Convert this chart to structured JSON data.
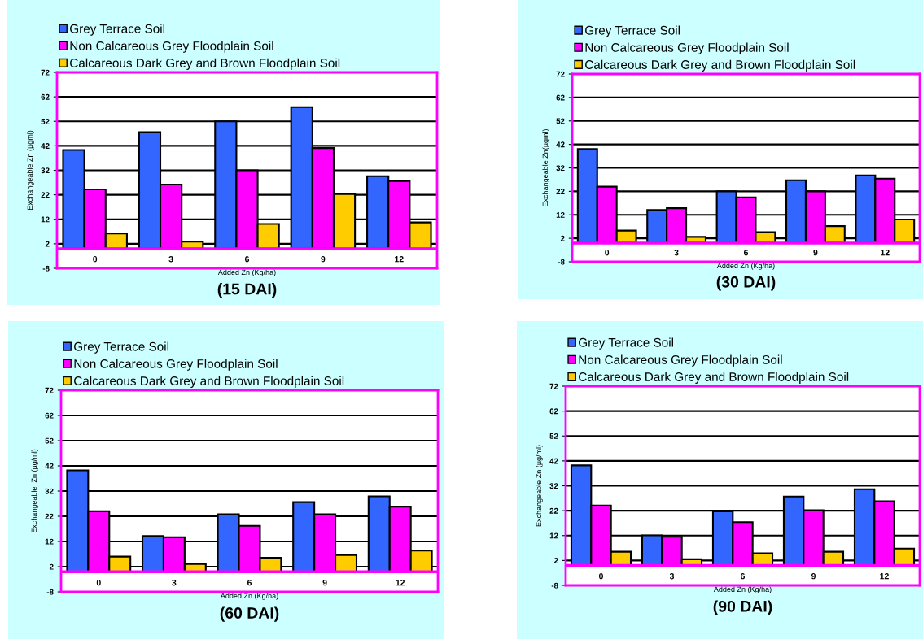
{
  "chart_data": [
    {
      "type": "bar",
      "title": "(15 DAI)",
      "xlabel": "Added Zn (Kg/ha)",
      "ylabel": "Exchangeable Zn (µgml)",
      "categories": [
        "0",
        "3",
        "6",
        "9",
        "12"
      ],
      "series": [
        {
          "name": "Grey Terrace Soil",
          "color": "#3366ff",
          "values": [
            40.3,
            47.6,
            52,
            57.8,
            29.6
          ]
        },
        {
          "name": "Non Calcareous Grey Floodplain Soil",
          "color": "#ff00ff",
          "values": [
            24.2,
            26.2,
            32,
            41.1,
            27.6
          ]
        },
        {
          "name": "Calcareous Dark Grey and Brown Floodplain Soil",
          "color": "#ffcc00",
          "values": [
            6.2,
            2.9,
            10.1,
            22.3,
            10.7
          ]
        }
      ],
      "ylim": [
        -8,
        72
      ],
      "yticks": [
        -8,
        2,
        12,
        22,
        32,
        42,
        52,
        62,
        72
      ],
      "grid": "y",
      "legend": "top left",
      "ref_lines": [
        {
          "axis": "y",
          "value": 0,
          "color": "#ff00ff"
        }
      ]
    },
    {
      "type": "bar",
      "title": "(30 DAI)",
      "xlabel": "Added Zn (Kg/ha)",
      "ylabel": "Exchangeable Zn(µgml)",
      "categories": [
        "0",
        "3",
        "6",
        "9",
        "12"
      ],
      "series": [
        {
          "name": "Grey Terrace Soil",
          "color": "#3366ff",
          "values": [
            40,
            14.1,
            22,
            26.7,
            28.8
          ]
        },
        {
          "name": "Non Calcareous Grey Floodplain Soil",
          "color": "#ff00ff",
          "values": [
            24,
            14.8,
            19.4,
            22,
            27.4
          ]
        },
        {
          "name": "Calcareous Dark Grey and Brown Floodplain Soil",
          "color": "#ffcc00",
          "values": [
            5.3,
            2.6,
            4.6,
            7.2,
            10
          ]
        }
      ],
      "ylim": [
        -8,
        72
      ],
      "yticks": [
        -8,
        2,
        12,
        22,
        32,
        42,
        52,
        62,
        72
      ],
      "grid": "y",
      "legend": "top left",
      "ref_lines": [
        {
          "axis": "y",
          "value": 0,
          "color": "#ff00ff"
        }
      ]
    },
    {
      "type": "bar",
      "title": "(60 DAI)",
      "xlabel": "Added Zn (Kg/ha)",
      "ylabel": "Exchangeable  Zn (µg/ml)",
      "categories": [
        "0",
        "3",
        "6",
        "9",
        "12"
      ],
      "series": [
        {
          "name": "Grey Terrace Soil",
          "color": "#3366ff",
          "values": [
            40.2,
            14.2,
            22.8,
            27.6,
            29.9
          ]
        },
        {
          "name": "Non Calcareous Grey Floodplain Soil",
          "color": "#ff00ff",
          "values": [
            24,
            13.7,
            18.2,
            22.8,
            25.8
          ]
        },
        {
          "name": "Calcareous Dark Grey and Brown Floodplain Soil",
          "color": "#ffcc00",
          "values": [
            6,
            3.1,
            5.5,
            6.6,
            8.4
          ]
        }
      ],
      "ylim": [
        -8,
        72
      ],
      "yticks": [
        -8,
        2,
        12,
        22,
        32,
        42,
        52,
        62,
        72
      ],
      "grid": "y",
      "legend": "top left",
      "ref_lines": [
        {
          "axis": "y",
          "value": 0,
          "color": "#ff00ff"
        }
      ]
    },
    {
      "type": "bar",
      "title": "(90 DAI)",
      "xlabel": "Added Zn (Kg/ha)",
      "ylabel": "Exchangeable Zn (µg/ml)",
      "categories": [
        "0",
        "3",
        "6",
        "9",
        "12"
      ],
      "series": [
        {
          "name": "Grey Terrace Soil",
          "color": "#3366ff",
          "values": [
            40.2,
            12.1,
            21.7,
            27.7,
            30.6
          ]
        },
        {
          "name": "Non Calcareous Grey Floodplain Soil",
          "color": "#ff00ff",
          "values": [
            24.1,
            11.5,
            17.4,
            22.2,
            25.8
          ]
        },
        {
          "name": "Calcareous Dark Grey and Brown Floodplain Soil",
          "color": "#ffcc00",
          "values": [
            5.5,
            2.5,
            4.9,
            5.5,
            6.8
          ]
        }
      ],
      "ylim": [
        -8,
        72
      ],
      "yticks": [
        -8,
        2,
        12,
        22,
        32,
        42,
        52,
        62,
        72
      ],
      "grid": "y",
      "legend": "top left",
      "ref_lines": [
        {
          "axis": "y",
          "value": 0,
          "color": "#ff00ff"
        }
      ]
    }
  ]
}
